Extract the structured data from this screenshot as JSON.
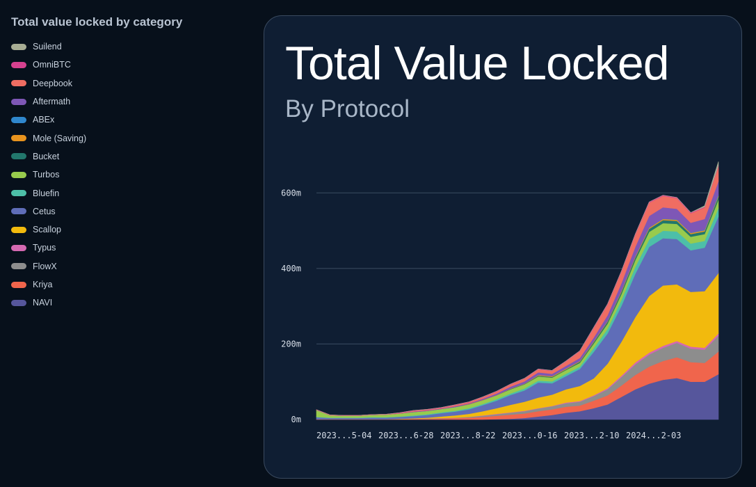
{
  "legend": {
    "title": "Total value locked by category",
    "items": [
      {
        "label": "Suilend",
        "color": "#a7ad94"
      },
      {
        "label": "OmniBTC",
        "color": "#d6418f"
      },
      {
        "label": "Deepbook",
        "color": "#ef6d62"
      },
      {
        "label": "Aftermath",
        "color": "#7e57b6"
      },
      {
        "label": "ABEx",
        "color": "#2f87cd"
      },
      {
        "label": "Mole (Saving)",
        "color": "#e8931e"
      },
      {
        "label": "Bucket",
        "color": "#22776c"
      },
      {
        "label": "Turbos",
        "color": "#98cb4d"
      },
      {
        "label": "Bluefin",
        "color": "#4dbfa8"
      },
      {
        "label": "Cetus",
        "color": "#5f6db8"
      },
      {
        "label": "Scallop",
        "color": "#f2ba0d"
      },
      {
        "label": "Typus",
        "color": "#d469b1"
      },
      {
        "label": "FlowX",
        "color": "#8d8d8d"
      },
      {
        "label": "Kriya",
        "color": "#f0654c"
      },
      {
        "label": "NAVI",
        "color": "#56569c"
      }
    ]
  },
  "card": {
    "title": "Total Value Locked",
    "subtitle": "By Protocol"
  },
  "chart_data": {
    "type": "area",
    "stacked": true,
    "title": "Total Value Locked",
    "subtitle": "By Protocol",
    "ylim": [
      0,
      700
    ],
    "y_ticks": [
      0,
      200,
      400,
      600
    ],
    "y_tick_labels": [
      "0m",
      "200m",
      "400m",
      "600m"
    ],
    "x_tick_labels": [
      "2023...5-04",
      "2023...6-28",
      "2023...8-22",
      "2023...0-16",
      "2023...2-10",
      "2024...2-03"
    ],
    "x": [
      "2023-05-04",
      "2023-05-18",
      "2023-06-01",
      "2023-06-15",
      "2023-06-28",
      "2023-07-12",
      "2023-07-26",
      "2023-08-09",
      "2023-08-22",
      "2023-09-05",
      "2023-09-19",
      "2023-10-03",
      "2023-10-16",
      "2023-10-30",
      "2023-11-13",
      "2023-11-27",
      "2023-12-10",
      "2023-12-24",
      "2024-01-07",
      "2024-01-21",
      "2024-02-03",
      "2024-02-17",
      "2024-03-02",
      "2024-03-16",
      "2024-03-30",
      "2024-04-13",
      "2024-04-27",
      "2024-05-11",
      "2024-05-25",
      "2024-06-08"
    ],
    "series": [
      {
        "name": "NAVI",
        "color": "#56569c",
        "values": [
          0,
          0,
          0,
          0,
          0,
          0,
          0,
          0,
          0,
          0,
          0,
          0,
          0,
          1,
          2,
          4,
          8,
          12,
          18,
          22,
          30,
          40,
          60,
          80,
          95,
          105,
          110,
          100,
          100,
          120
        ]
      },
      {
        "name": "Kriya",
        "color": "#f0654c",
        "values": [
          1,
          1,
          1,
          1,
          1,
          1,
          1,
          2,
          2,
          3,
          4,
          5,
          7,
          9,
          11,
          12,
          14,
          15,
          16,
          15,
          20,
          24,
          30,
          38,
          45,
          50,
          55,
          52,
          50,
          60
        ]
      },
      {
        "name": "FlowX",
        "color": "#8d8d8d",
        "values": [
          0,
          0,
          0,
          0,
          0,
          0,
          0,
          0,
          1,
          1,
          1,
          2,
          3,
          4,
          5,
          6,
          7,
          8,
          9,
          10,
          12,
          16,
          22,
          28,
          32,
          35,
          38,
          36,
          35,
          42
        ]
      },
      {
        "name": "Typus",
        "color": "#d469b1",
        "values": [
          0,
          0,
          0,
          0,
          0,
          0,
          0,
          0,
          0,
          0,
          0,
          0,
          1,
          1,
          1,
          1,
          1,
          1,
          2,
          2,
          2,
          3,
          4,
          5,
          5,
          5,
          5,
          5,
          5,
          6
        ]
      },
      {
        "name": "Scallop",
        "color": "#f2ba0d",
        "values": [
          0,
          0,
          0,
          0,
          0,
          0,
          1,
          1,
          2,
          4,
          6,
          8,
          11,
          15,
          20,
          24,
          28,
          30,
          35,
          40,
          45,
          65,
          90,
          120,
          150,
          160,
          150,
          145,
          150,
          160
        ]
      },
      {
        "name": "Cetus",
        "color": "#5f6db8",
        "values": [
          5,
          3,
          3,
          3,
          4,
          4,
          5,
          6,
          7,
          9,
          10,
          12,
          16,
          20,
          26,
          30,
          40,
          30,
          35,
          45,
          70,
          80,
          95,
          115,
          130,
          125,
          120,
          110,
          115,
          150
        ]
      },
      {
        "name": "Bluefin",
        "color": "#4dbfa8",
        "values": [
          1,
          1,
          1,
          1,
          1,
          1,
          1,
          2,
          2,
          2,
          2,
          3,
          3,
          4,
          4,
          5,
          5,
          5,
          6,
          6,
          10,
          12,
          15,
          18,
          20,
          20,
          20,
          18,
          18,
          22
        ]
      },
      {
        "name": "Turbos",
        "color": "#98cb4d",
        "values": [
          18,
          6,
          5,
          5,
          6,
          7,
          8,
          9,
          9,
          9,
          10,
          10,
          10,
          10,
          11,
          11,
          11,
          10,
          10,
          10,
          12,
          14,
          16,
          18,
          20,
          20,
          20,
          18,
          18,
          22
        ]
      },
      {
        "name": "Bucket",
        "color": "#22776c",
        "values": [
          0,
          0,
          0,
          0,
          0,
          0,
          0,
          0,
          0,
          0,
          0,
          0,
          0,
          0,
          1,
          1,
          2,
          2,
          2,
          3,
          4,
          5,
          6,
          7,
          8,
          8,
          8,
          7,
          7,
          8
        ]
      },
      {
        "name": "Mole (Saving)",
        "color": "#e8931e",
        "values": [
          0,
          0,
          0,
          0,
          0,
          0,
          0,
          0,
          0,
          0,
          0,
          1,
          1,
          1,
          1,
          1,
          2,
          2,
          2,
          2,
          2,
          2,
          3,
          3,
          3,
          3,
          3,
          3,
          3,
          3
        ]
      },
      {
        "name": "ABEx",
        "color": "#2f87cd",
        "values": [
          0,
          0,
          0,
          0,
          0,
          0,
          0,
          0,
          0,
          0,
          0,
          0,
          0,
          0,
          0,
          0,
          0,
          0,
          0,
          0,
          0,
          0,
          0,
          0,
          1,
          1,
          1,
          1,
          2,
          3
        ]
      },
      {
        "name": "Aftermath",
        "color": "#7e57b6",
        "values": [
          0,
          0,
          0,
          0,
          0,
          0,
          0,
          1,
          1,
          1,
          2,
          2,
          3,
          4,
          5,
          6,
          7,
          6,
          7,
          8,
          10,
          15,
          20,
          25,
          30,
          30,
          28,
          26,
          28,
          35
        ]
      },
      {
        "name": "Deepbook",
        "color": "#ef6d62",
        "values": [
          1,
          1,
          1,
          1,
          1,
          1,
          1,
          2,
          2,
          2,
          3,
          3,
          4,
          5,
          6,
          7,
          8,
          8,
          12,
          18,
          25,
          28,
          30,
          32,
          35,
          30,
          28,
          25,
          30,
          40
        ]
      },
      {
        "name": "OmniBTC",
        "color": "#d6418f",
        "values": [
          0,
          0,
          0,
          0,
          0,
          0,
          1,
          1,
          1,
          1,
          1,
          1,
          1,
          1,
          1,
          1,
          1,
          1,
          1,
          1,
          2,
          2,
          2,
          2,
          2,
          2,
          2,
          2,
          2,
          2
        ]
      },
      {
        "name": "Suilend",
        "color": "#a7ad94",
        "values": [
          0,
          0,
          0,
          0,
          0,
          0,
          0,
          0,
          0,
          0,
          0,
          0,
          0,
          0,
          0,
          0,
          0,
          0,
          0,
          0,
          0,
          0,
          0,
          0,
          0,
          0,
          0,
          0,
          3,
          10
        ]
      }
    ]
  }
}
